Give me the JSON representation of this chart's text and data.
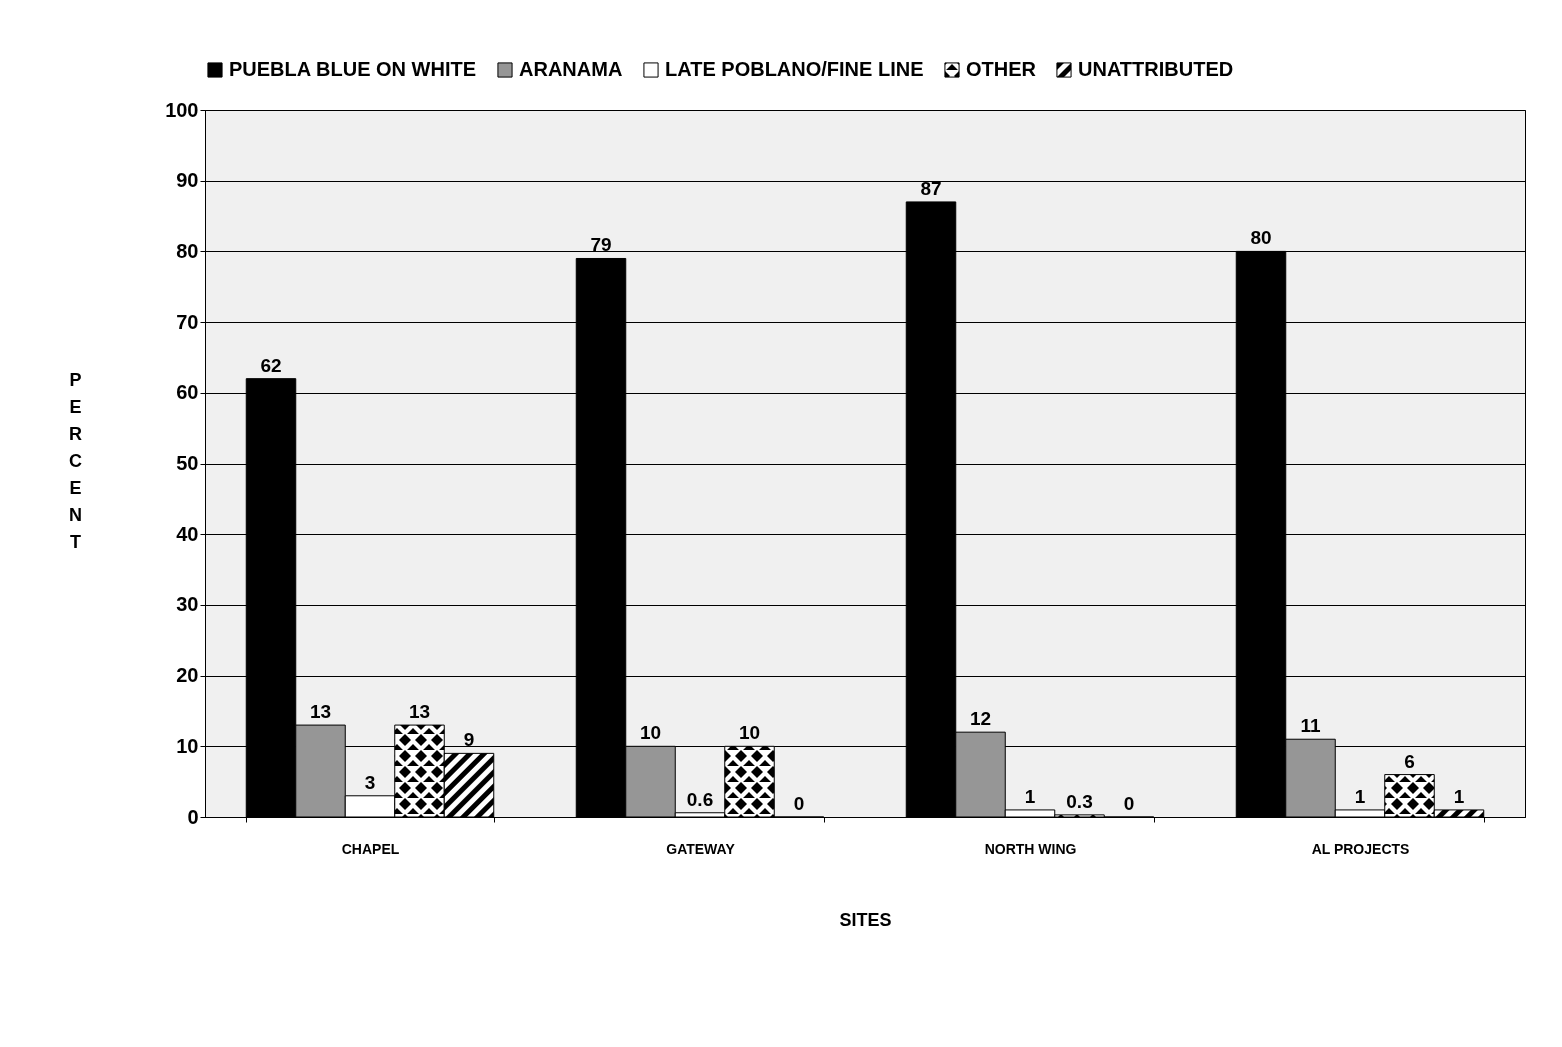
{
  "chart_data": {
    "type": "bar",
    "xlabel": "SITES",
    "ylabel": "PERCENT",
    "categories": [
      "CHAPEL",
      "GATEWAY",
      "NORTH WING",
      "AL PROJECTS"
    ],
    "series": [
      {
        "name": "PUEBLA BLUE ON WHITE",
        "color": "#000000",
        "values": [
          62,
          79,
          87,
          80
        ]
      },
      {
        "name": "ARANAMA",
        "color": "#969696",
        "values": [
          13,
          10,
          12,
          11
        ]
      },
      {
        "name": "LATE POBLANO/FINE LINE",
        "color": "#ffffff",
        "values": [
          3,
          0.6,
          1,
          1
        ]
      },
      {
        "name": "OTHER",
        "color": "#000000",
        "values": [
          13,
          10,
          0.3,
          6
        ]
      },
      {
        "name": "UNATTRIBUTED",
        "color": "#000000",
        "values": [
          9,
          0,
          0,
          1
        ]
      }
    ],
    "ylim": [
      0,
      100
    ],
    "yticks": [
      0,
      10,
      20,
      30,
      40,
      50,
      60,
      70,
      80,
      90,
      100
    ],
    "grid": "y",
    "legend": "top",
    "data_labels": true
  }
}
